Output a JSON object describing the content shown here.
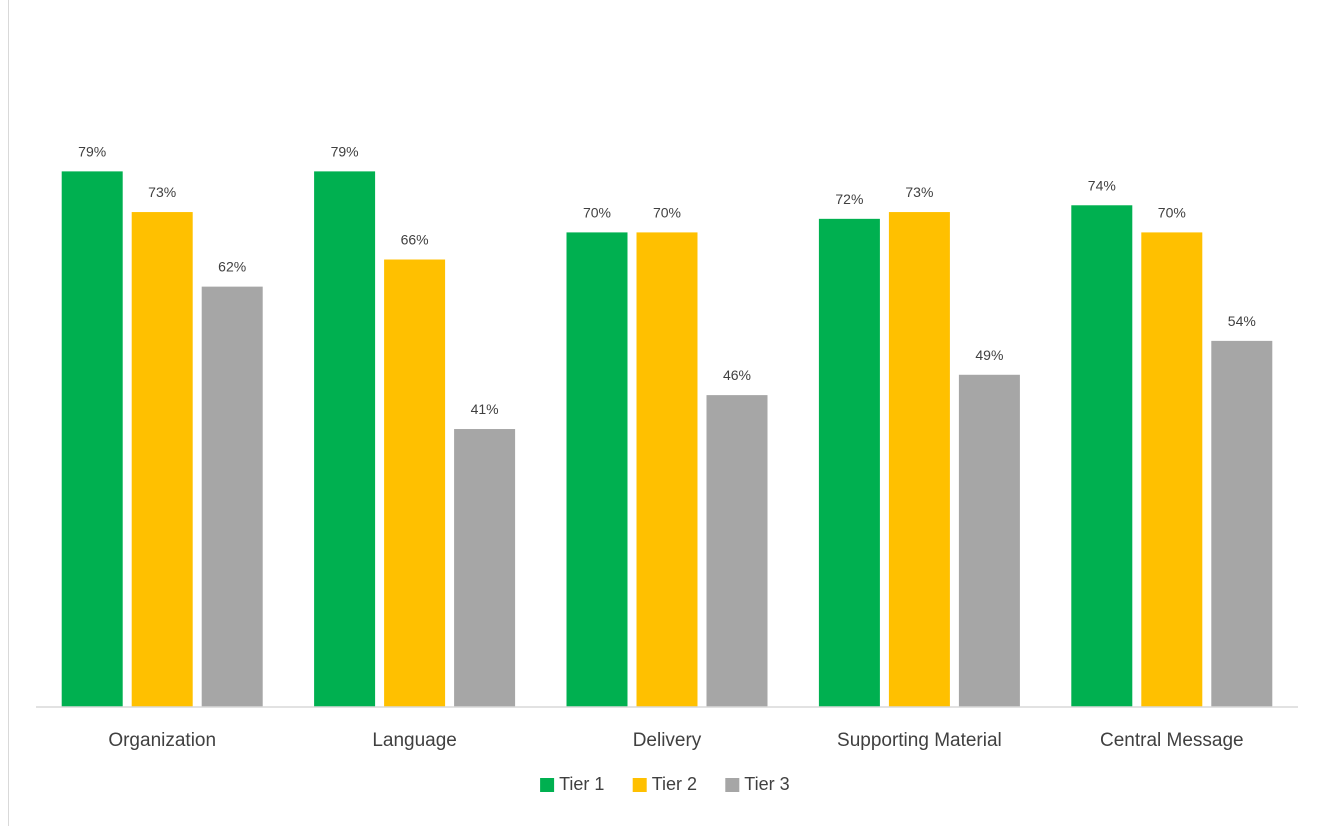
{
  "chart_data": {
    "type": "bar",
    "categories": [
      "Organization",
      "Language",
      "Delivery",
      "Supporting Material",
      "Central Message"
    ],
    "series": [
      {
        "name": "Tier 1",
        "color": "#00b050",
        "values": [
          79,
          79,
          70,
          72,
          74
        ],
        "labels": [
          "79%",
          "79%",
          "70%",
          "72%",
          "74%"
        ]
      },
      {
        "name": "Tier 2",
        "color": "#ffc000",
        "values": [
          73,
          66,
          70,
          73,
          70
        ],
        "labels": [
          "73%",
          "66%",
          "70%",
          "73%",
          "70%"
        ]
      },
      {
        "name": "Tier 3",
        "color": "#a6a6a6",
        "values": [
          62,
          41,
          46,
          49,
          54
        ],
        "labels": [
          "62%",
          "41%",
          "46%",
          "49%",
          "54%"
        ]
      }
    ],
    "title": "",
    "xlabel": "",
    "ylabel": "",
    "ylim": [
      0,
      100
    ],
    "grid": false,
    "legend": "bottom"
  }
}
